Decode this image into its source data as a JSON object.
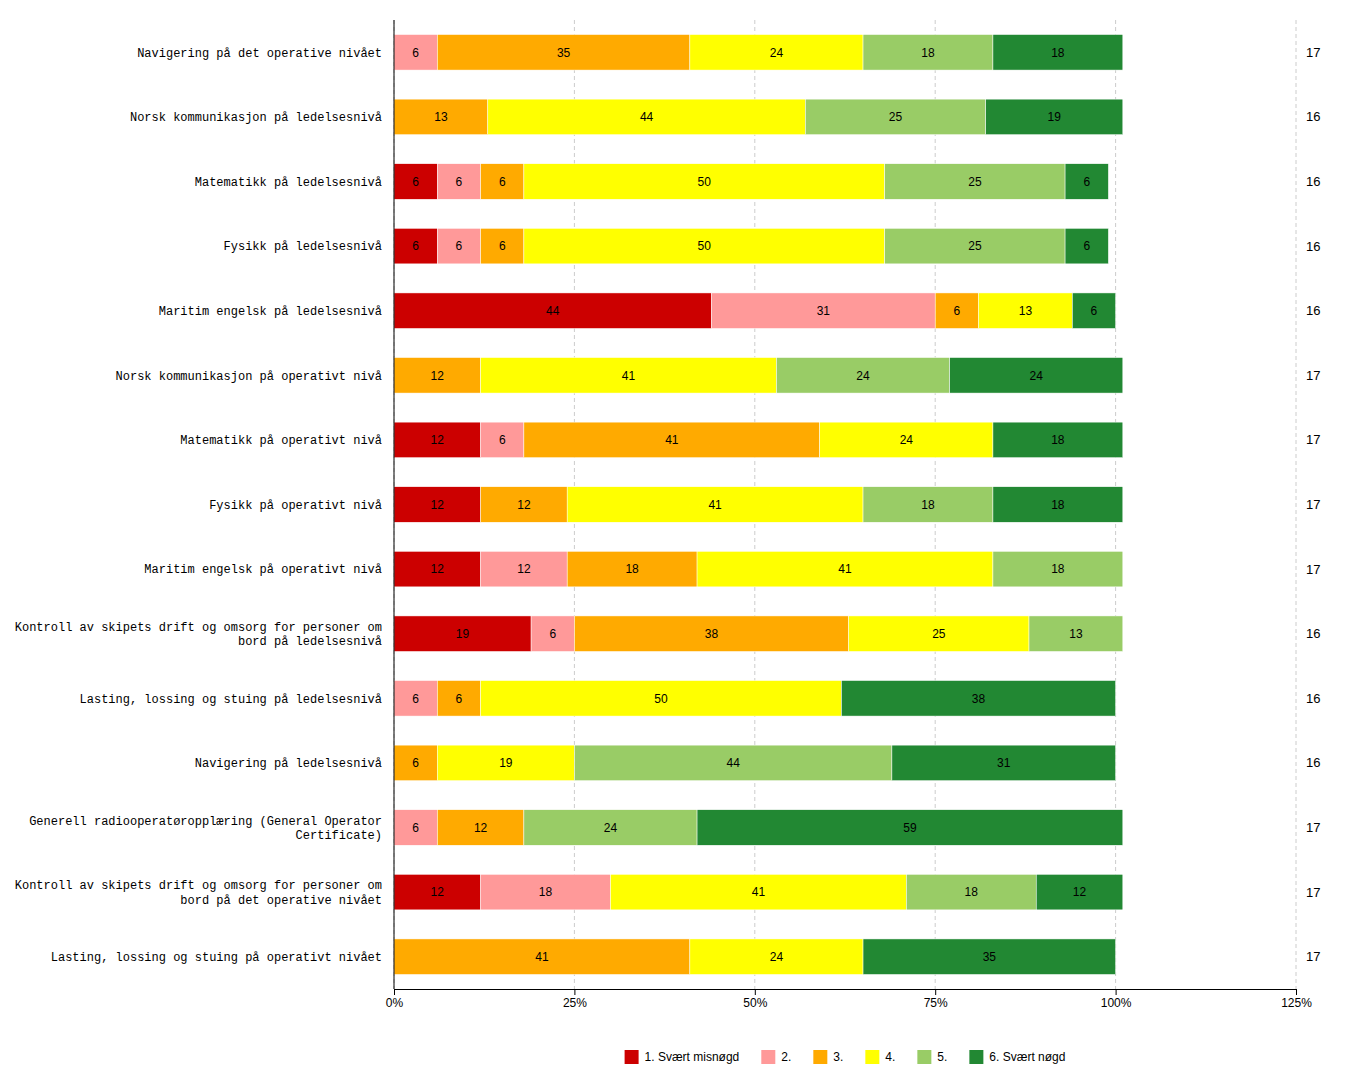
{
  "chart_data": {
    "type": "bar",
    "orientation": "horizontal",
    "stacked": true,
    "categories": [
      "Navigering på det operative nivået",
      "Norsk kommunikasjon på ledelsesnivå",
      "Matematikk på ledelsesnivå",
      "Fysikk på ledelsesnivå",
      "Maritim engelsk på ledelsesnivå",
      "Norsk kommunikasjon på operativt nivå",
      "Matematikk på operativt nivå",
      "Fysikk på operativt nivå",
      "Maritim engelsk på operativt nivå",
      "Kontroll av skipets drift og omsorg for personer om\nbord på ledelsesnivå",
      "Lasting, lossing og stuing på ledelsesnivå",
      "Navigering på ledelsesnivå",
      "Generell radiooperatøropplæring (General Operator\nCertificate)",
      "Kontroll av skipets drift og omsorg for personer om\nbord på det operative nivået",
      "Lasting, lossing og stuing på operativt nivået"
    ],
    "series": [
      {
        "name": "1. Svært misnøgd",
        "color": "#cc0000",
        "values": [
          0,
          0,
          6,
          6,
          44,
          0,
          12,
          12,
          12,
          19,
          0,
          0,
          0,
          12,
          0
        ]
      },
      {
        "name": "2.",
        "color": "#ff9999",
        "values": [
          6,
          0,
          6,
          6,
          31,
          0,
          6,
          0,
          12,
          6,
          6,
          0,
          6,
          18,
          0
        ]
      },
      {
        "name": "3.",
        "color": "#ffaa00",
        "values": [
          35,
          13,
          6,
          6,
          6,
          12,
          41,
          12,
          18,
          38,
          6,
          6,
          12,
          0,
          41
        ]
      },
      {
        "name": "4.",
        "color": "#ffff00",
        "values": [
          24,
          44,
          50,
          50,
          13,
          41,
          24,
          41,
          41,
          25,
          50,
          19,
          0,
          41,
          24
        ]
      },
      {
        "name": "5.",
        "color": "#99cc66",
        "values": [
          18,
          25,
          25,
          25,
          0,
          24,
          0,
          18,
          18,
          13,
          0,
          44,
          24,
          18,
          0
        ]
      },
      {
        "name": "6. Svært nøgd",
        "color": "#228833",
        "values": [
          18,
          19,
          6,
          6,
          6,
          24,
          18,
          18,
          0,
          0,
          38,
          31,
          59,
          12,
          35
        ]
      }
    ],
    "n_values": [
      17,
      16,
      16,
      16,
      16,
      17,
      17,
      17,
      17,
      16,
      16,
      16,
      17,
      17,
      17
    ],
    "xlim": [
      0,
      125
    ],
    "xticks": [
      {
        "value": 0,
        "label": "0%"
      },
      {
        "value": 25,
        "label": "25%"
      },
      {
        "value": 50,
        "label": "50%"
      },
      {
        "value": 75,
        "label": "75%"
      },
      {
        "value": 100,
        "label": "100%"
      },
      {
        "value": 125,
        "label": "125%"
      }
    ],
    "grid": true,
    "data_labels": true,
    "legend": "bottom"
  }
}
